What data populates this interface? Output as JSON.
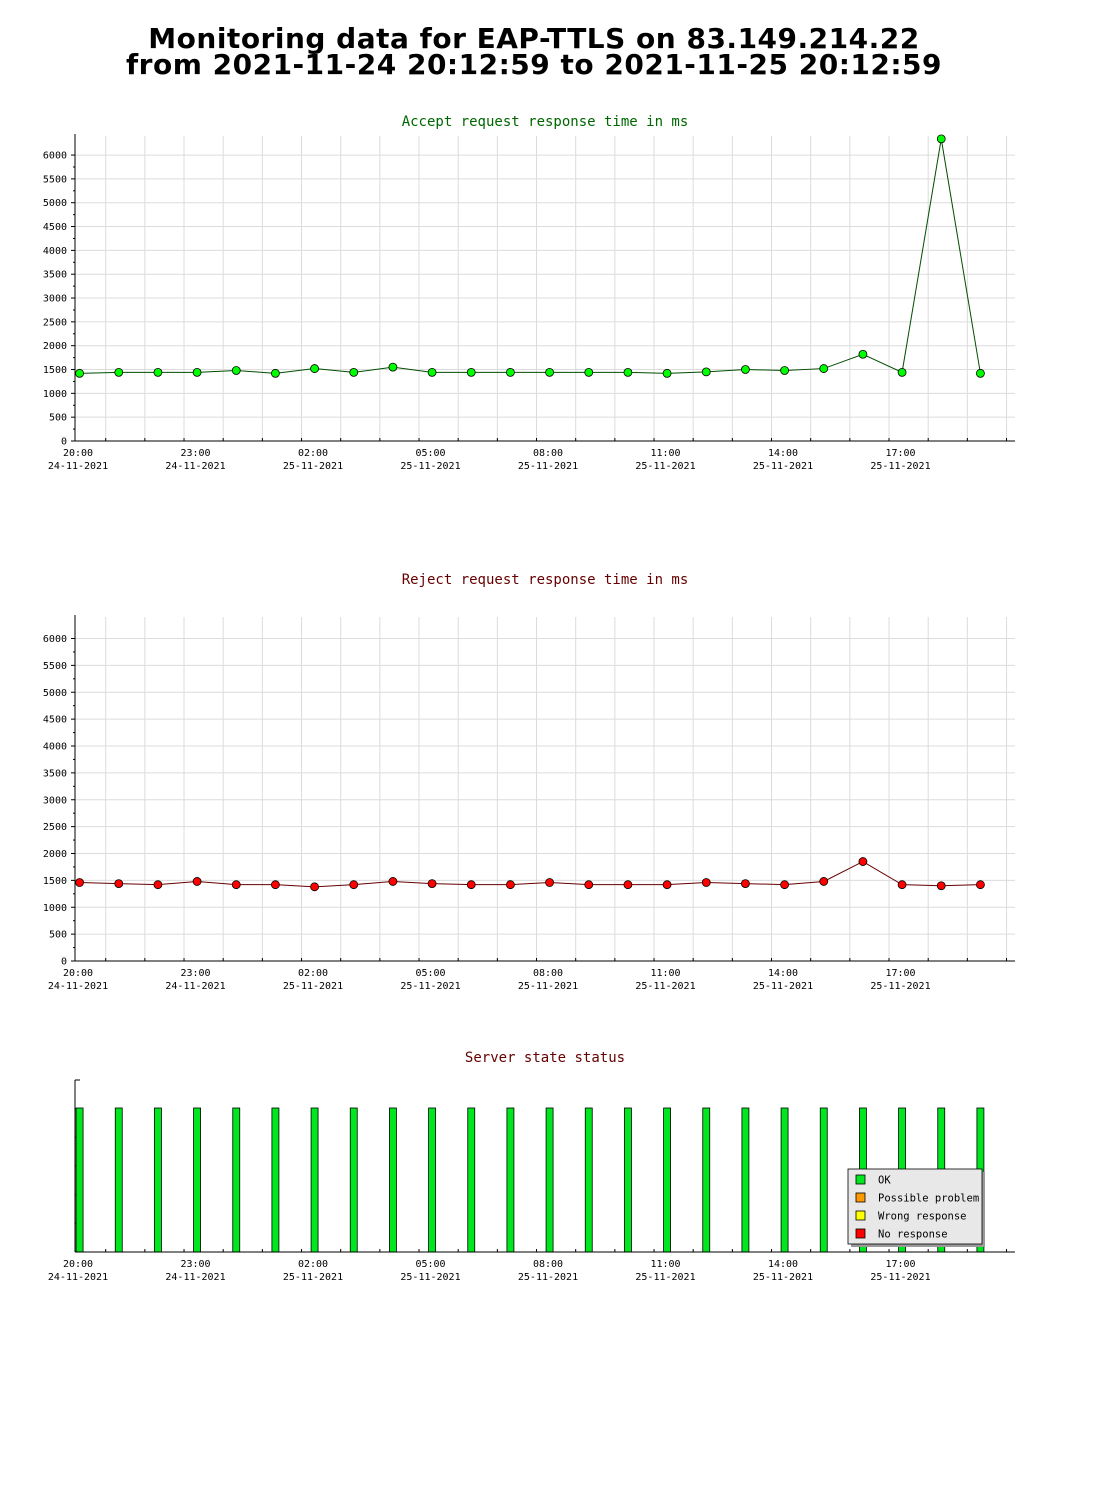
{
  "page": {
    "title_line1": "Monitoring data for EAP-TTLS on 83.149.214.22",
    "title_line2": "from 2021-11-24 20:12:59 to 2021-11-25 20:12:59"
  },
  "x_axis": {
    "tick_labels": [
      {
        "time": "20:00",
        "date": "24-11-2021"
      },
      {
        "time": "23:00",
        "date": "24-11-2021"
      },
      {
        "time": "02:00",
        "date": "25-11-2021"
      },
      {
        "time": "05:00",
        "date": "25-11-2021"
      },
      {
        "time": "08:00",
        "date": "25-11-2021"
      },
      {
        "time": "11:00",
        "date": "25-11-2021"
      },
      {
        "time": "14:00",
        "date": "25-11-2021"
      },
      {
        "time": "17:00",
        "date": "25-11-2021"
      }
    ]
  },
  "legend": {
    "items": [
      {
        "label": "OK",
        "color": "#00e61f"
      },
      {
        "label": "Possible problem",
        "color": "#ff9900"
      },
      {
        "label": "Wrong response",
        "color": "#ffff00"
      },
      {
        "label": "No response",
        "color": "#ff0000"
      }
    ]
  },
  "chart_data": [
    {
      "type": "line",
      "title": "Accept request response time in ms",
      "title_color": "#006600",
      "line_color": "#004d00",
      "marker_color": "#00ff00",
      "ylim": [
        0,
        6400
      ],
      "yticks": [
        0,
        500,
        1000,
        1500,
        2000,
        2500,
        3000,
        3500,
        4000,
        4500,
        5000,
        5500,
        6000
      ],
      "grid": true,
      "x": [
        "20:20",
        "21:20",
        "22:20",
        "23:20",
        "00:20",
        "01:20",
        "02:20",
        "03:20",
        "04:20",
        "05:20",
        "06:20",
        "07:20",
        "08:20",
        "09:20",
        "10:20",
        "11:20",
        "12:20",
        "13:20",
        "14:20",
        "15:20",
        "16:20",
        "17:20",
        "18:20",
        "19:20"
      ],
      "values": [
        1420,
        1440,
        1440,
        1440,
        1480,
        1420,
        1520,
        1440,
        1550,
        1440,
        1440,
        1440,
        1440,
        1440,
        1440,
        1420,
        1450,
        1500,
        1480,
        1520,
        1820,
        1440,
        6340,
        1420
      ]
    },
    {
      "type": "line",
      "title": "Reject request response time in ms",
      "title_color": "#660000",
      "line_color": "#660000",
      "marker_color": "#ff0000",
      "ylim": [
        0,
        6400
      ],
      "yticks": [
        0,
        500,
        1000,
        1500,
        2000,
        2500,
        3000,
        3500,
        4000,
        4500,
        5000,
        5500,
        6000
      ],
      "grid": true,
      "x": [
        "20:20",
        "21:20",
        "22:20",
        "23:20",
        "00:20",
        "01:20",
        "02:20",
        "03:20",
        "04:20",
        "05:20",
        "06:20",
        "07:20",
        "08:20",
        "09:20",
        "10:20",
        "11:20",
        "12:20",
        "13:20",
        "14:20",
        "15:20",
        "16:20",
        "17:20",
        "18:20",
        "19:20"
      ],
      "values": [
        1460,
        1440,
        1420,
        1480,
        1420,
        1420,
        1380,
        1420,
        1480,
        1440,
        1420,
        1420,
        1460,
        1420,
        1420,
        1420,
        1460,
        1440,
        1420,
        1480,
        1850,
        1420,
        1400,
        1420
      ]
    },
    {
      "type": "bar",
      "title": "Server state status",
      "title_color": "#660000",
      "bar_color": "#00e61f",
      "x": [
        "20:20",
        "21:20",
        "22:20",
        "23:20",
        "00:20",
        "01:20",
        "02:20",
        "03:20",
        "04:20",
        "05:20",
        "06:20",
        "07:20",
        "08:20",
        "09:20",
        "10:20",
        "11:20",
        "12:20",
        "13:20",
        "14:20",
        "15:20",
        "16:20",
        "17:20",
        "18:20",
        "19:20"
      ],
      "values": [
        "OK",
        "OK",
        "OK",
        "OK",
        "OK",
        "OK",
        "OK",
        "OK",
        "OK",
        "OK",
        "OK",
        "OK",
        "OK",
        "OK",
        "OK",
        "OK",
        "OK",
        "OK",
        "OK",
        "OK",
        "OK",
        "OK",
        "OK",
        "OK"
      ],
      "legend_position": "bottom-right"
    }
  ]
}
